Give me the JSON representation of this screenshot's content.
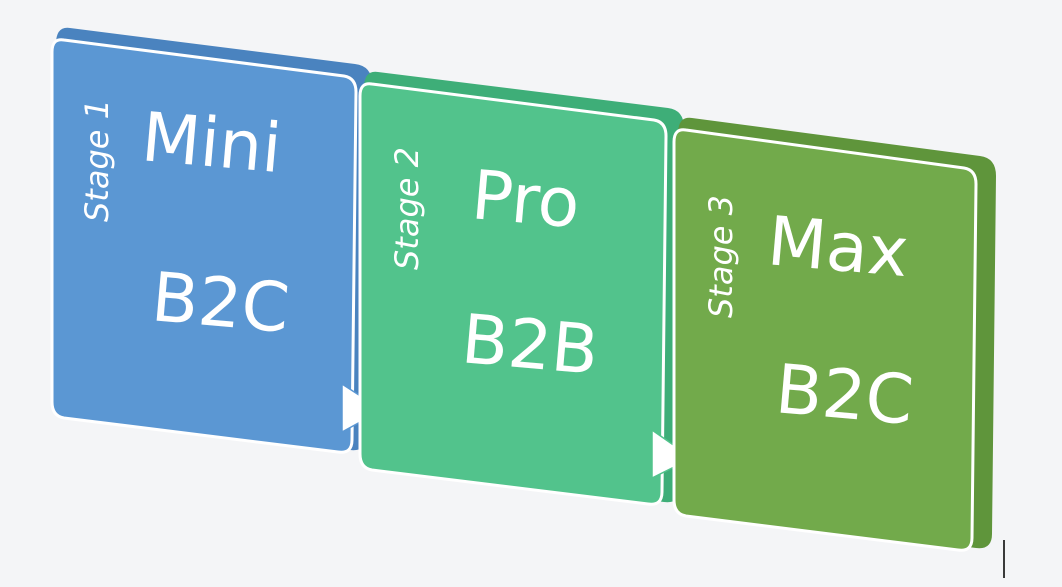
{
  "stages": [
    {
      "label": "Stage 1",
      "tier": "Mini",
      "market": "B2C",
      "color": "#5b97d3",
      "color_dark": "#4a83bf"
    },
    {
      "label": "Stage 2",
      "tier": "Pro",
      "market": "B2B",
      "color": "#52c38c",
      "color_dark": "#3eae78"
    },
    {
      "label": "Stage 3",
      "tier": "Max",
      "market": "B2C",
      "color": "#72aa4b",
      "color_dark": "#5f953b"
    }
  ],
  "arrow_color": "#ffffff"
}
